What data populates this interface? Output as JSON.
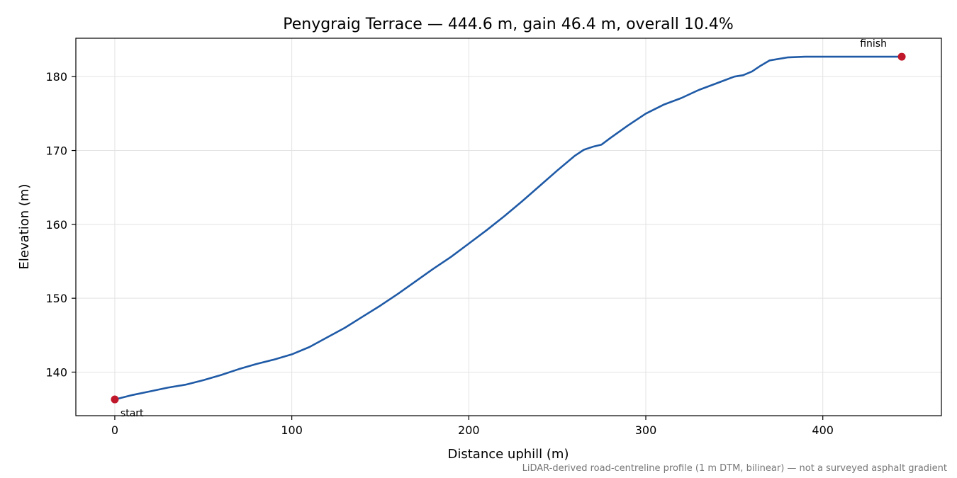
{
  "chart_data": {
    "type": "line",
    "title": "Penygraig Terrace — 444.6 m, gain 46.4 m, overall 10.4%",
    "xlabel": "Distance uphill (m)",
    "ylabel": "Elevation (m)",
    "xlim": [
      -22,
      467
    ],
    "ylim": [
      134.1,
      185.2
    ],
    "xticks": [
      0,
      100,
      200,
      300,
      400
    ],
    "yticks": [
      140,
      150,
      160,
      170,
      180
    ],
    "xtick_labels": [
      "0",
      "100",
      "200",
      "300",
      "400"
    ],
    "ytick_labels": [
      "140",
      "150",
      "160",
      "170",
      "180"
    ],
    "grid": true,
    "series": [
      {
        "color": "#1f5aa6",
        "x": [
          0,
          10,
          20,
          30,
          40,
          50,
          60,
          70,
          80,
          90,
          100,
          110,
          120,
          130,
          140,
          150,
          160,
          170,
          180,
          190,
          200,
          210,
          220,
          230,
          240,
          250,
          260,
          265,
          270,
          275,
          280,
          290,
          300,
          310,
          320,
          330,
          340,
          350,
          355,
          360,
          365,
          370,
          380,
          390,
          400,
          410,
          420,
          430,
          440,
          444.6
        ],
        "y": [
          136.3,
          136.9,
          137.4,
          137.9,
          138.3,
          138.9,
          139.6,
          140.4,
          141.1,
          141.7,
          142.4,
          143.4,
          144.7,
          146.0,
          147.5,
          149.0,
          150.6,
          152.3,
          154.0,
          155.6,
          157.4,
          159.2,
          161.1,
          163.1,
          165.2,
          167.3,
          169.3,
          170.1,
          170.5,
          170.8,
          171.7,
          173.4,
          175.0,
          176.2,
          177.1,
          178.2,
          179.1,
          180.0,
          180.2,
          180.7,
          181.5,
          182.2,
          182.6,
          182.7,
          182.7,
          182.7,
          182.7,
          182.7,
          182.7,
          182.7
        ]
      }
    ],
    "markers": [
      {
        "label": "start",
        "x": 0,
        "y": 136.3,
        "color": "#c0182a"
      },
      {
        "label": "finish",
        "x": 444.6,
        "y": 182.7,
        "color": "#c0182a"
      }
    ],
    "footnote": "LiDAR-derived road-centreline profile (1 m DTM, bilinear) — not a surveyed asphalt gradient"
  }
}
